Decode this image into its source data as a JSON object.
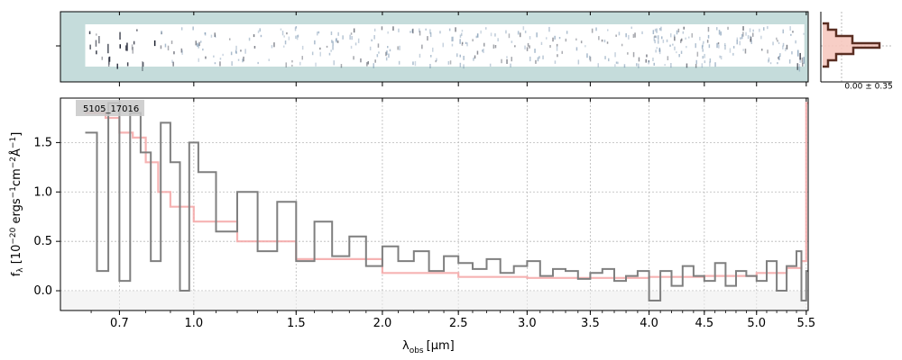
{
  "chart_data": [
    {
      "type": "heatmap",
      "description_role": "2D spectrum",
      "xlim": [
        0.5,
        5.52
      ],
      "colors": {
        "background": "#c5dcdb",
        "dark": "#0b1020",
        "mid": "#5e7fa0"
      }
    },
    {
      "type": "line",
      "description_role": "cross-dispersion profile",
      "annotation": "0.00 ± 0.35",
      "colors": {
        "fill": "#f6c9c0",
        "line": "#5a2e22"
      }
    },
    {
      "type": "line",
      "label": "5105_17016",
      "xlabel_main": "λ",
      "xlabel_sub": "obs",
      "xlabel_units": "[μm]",
      "ylabel": "f_λ [10^-20 ergs^-1 cm^-2 Å^-1]",
      "xlim": [
        0.5,
        5.52
      ],
      "ylim": [
        -0.2,
        1.95
      ],
      "xscale": "sqrt",
      "grid": true,
      "x_ticks": [
        0.7,
        1.0,
        1.5,
        2.0,
        2.5,
        3.0,
        3.5,
        4.0,
        4.5,
        5.0,
        5.5
      ],
      "x_tick_labels": [
        "0.7",
        "1.0",
        "1.5",
        "2.0",
        "2.5",
        "3.0",
        "3.5",
        "4.0",
        "4.5",
        "5.0",
        "5.5"
      ],
      "y_ticks": [
        0.0,
        0.5,
        1.0,
        1.5
      ],
      "y_tick_labels": [
        "0.0",
        "0.5",
        "1.0",
        "1.5"
      ],
      "series": [
        {
          "role": "observed spectrum",
          "color": "#7f7f7f",
          "x": [
            0.58,
            0.62,
            0.66,
            0.7,
            0.74,
            0.78,
            0.82,
            0.86,
            0.9,
            0.94,
            0.98,
            1.02,
            1.1,
            1.2,
            1.3,
            1.4,
            1.5,
            1.6,
            1.7,
            1.8,
            1.9,
            2.0,
            2.1,
            2.2,
            2.3,
            2.4,
            2.5,
            2.6,
            2.7,
            2.8,
            2.9,
            3.0,
            3.1,
            3.2,
            3.3,
            3.4,
            3.5,
            3.6,
            3.7,
            3.8,
            3.9,
            4.0,
            4.1,
            4.2,
            4.3,
            4.4,
            4.5,
            4.6,
            4.7,
            4.8,
            4.9,
            5.0,
            5.1,
            5.2,
            5.3,
            5.4,
            5.45,
            5.5
          ],
          "y": [
            1.6,
            0.2,
            1.9,
            0.1,
            1.8,
            1.4,
            0.3,
            1.7,
            1.3,
            0.0,
            1.5,
            1.2,
            0.6,
            1.0,
            0.4,
            0.9,
            0.3,
            0.7,
            0.35,
            0.55,
            0.25,
            0.45,
            0.3,
            0.4,
            0.2,
            0.35,
            0.28,
            0.22,
            0.32,
            0.18,
            0.25,
            0.3,
            0.15,
            0.22,
            0.2,
            0.12,
            0.18,
            0.22,
            0.1,
            0.15,
            0.2,
            -0.1,
            0.2,
            0.05,
            0.25,
            0.15,
            0.1,
            0.28,
            0.05,
            0.2,
            0.15,
            0.1,
            0.3,
            0.0,
            0.25,
            0.4,
            -0.1,
            0.2
          ]
        },
        {
          "role": "model",
          "color": "#f4a6a6",
          "x": [
            0.58,
            0.65,
            0.7,
            0.75,
            0.8,
            0.85,
            0.9,
            1.0,
            1.2,
            1.5,
            2.0,
            2.5,
            3.0,
            3.5,
            4.0,
            4.5,
            5.0,
            5.3,
            5.45,
            5.5
          ],
          "y": [
            1.8,
            1.75,
            1.6,
            1.55,
            1.3,
            1.0,
            0.85,
            0.7,
            0.5,
            0.32,
            0.18,
            0.14,
            0.13,
            0.13,
            0.14,
            0.15,
            0.18,
            0.23,
            0.3,
            1.9
          ]
        }
      ]
    }
  ]
}
